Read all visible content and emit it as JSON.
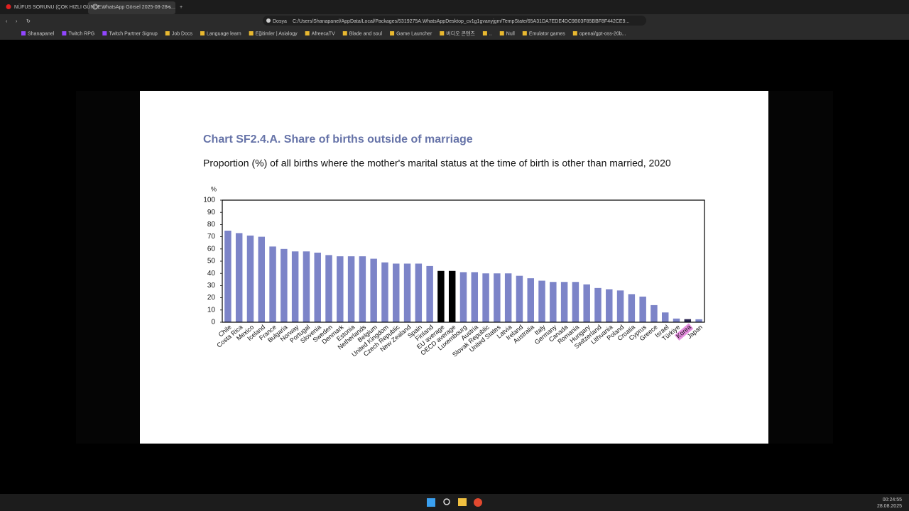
{
  "browser": {
    "tabs": [
      "NÜFUS SORUNU (ÇOK HIZLI GÜNDE...",
      "WhatsApp Görsel 2025-08-28 s..."
    ],
    "address_prefix": "Dosya",
    "url": "C:/Users/Shanapanel/AppData/Local/Packages/5319275A.WhatsAppDesktop_cv1g1gvanyjgm/TempState/65A31DA7EDE4DC9B03F85BBF8F442CE9...",
    "bookmarks": [
      "Shanapanel",
      "Twitch RPG",
      "Twitch Partner Signup",
      "Job Docs",
      "Language learn",
      "Eğitimler | Asialogy",
      "AfreecaTV",
      "Blade and soul",
      "Game Launcher",
      "버디오 콘텐츠",
      "..",
      "Null",
      "Emulator games",
      "openai/gpt-oss-20b..."
    ]
  },
  "chart_data": {
    "type": "bar",
    "title": "Chart SF2.4.A. Share of births outside of marriage",
    "subtitle": "Proportion (%) of all births where the mother's marital status at the time of birth is other than married, 2020",
    "y_label": "%",
    "categories": [
      "Chile",
      "Costa Rica",
      "Mexico",
      "Iceland",
      "France",
      "Bulgaria",
      "Norway",
      "Portugal",
      "Slovenia",
      "Sweden",
      "Denmark",
      "Estonia",
      "Netherlands",
      "Belgium",
      "United Kingdom",
      "Czech Republic",
      "New Zealand",
      "Spain",
      "Finland",
      "EU average",
      "OECD average",
      "Luxembourg",
      "Austria",
      "Slovak Republic",
      "United States",
      "Latvia",
      "Ireland",
      "Australia",
      "Italy",
      "Germany",
      "Canada",
      "Romania",
      "Hungary",
      "Switzerland",
      "Lithuania",
      "Poland",
      "Croatia",
      "Cyprus",
      "Greece",
      "Israel",
      "Türkiye",
      "Korea",
      "Japan"
    ],
    "values": [
      75,
      73,
      71,
      70,
      62,
      60,
      58,
      58,
      57,
      55,
      54,
      54,
      54,
      52,
      49,
      48,
      48,
      48,
      46,
      42,
      42,
      41,
      41,
      40,
      40,
      40,
      38,
      36,
      34,
      33,
      33,
      33,
      31,
      28,
      27,
      26,
      23,
      21,
      14,
      8,
      3,
      2.5,
      2.4
    ],
    "color": "#7c84c8",
    "average_color": "#000000",
    "average_indices": [
      19,
      20
    ],
    "highlighted_category": 41,
    "highlight_color": "#e68ee0",
    "highlight_bar_color": "#2a2450",
    "ylim": [
      0,
      100
    ],
    "yticks": [
      0,
      10,
      20,
      30,
      40,
      50,
      60,
      70,
      80,
      90,
      100
    ]
  },
  "taskbar": {
    "time": "00:24:55",
    "date": "28.08.2025"
  }
}
